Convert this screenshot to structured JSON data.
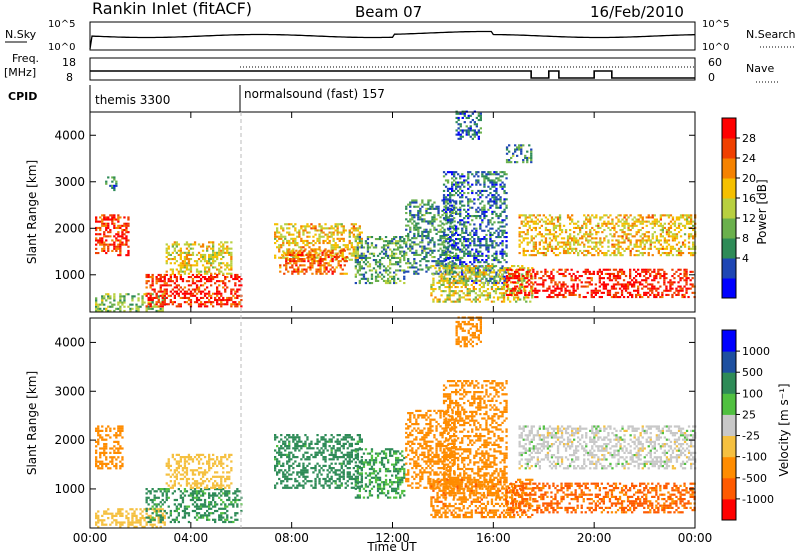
{
  "header": {
    "station": "Rankin Inlet (fitACF)",
    "beam": "Beam 07",
    "date": "16/Feb/2010"
  },
  "panels": {
    "nsky": {
      "label": "N.Sky",
      "yticks": [
        "10^5",
        "10^0"
      ],
      "right_label": "N.Search",
      "right_yticks": [
        "10^5",
        "10^0"
      ]
    },
    "freq": {
      "label_line1": "Freq.",
      "label_line2": "[MHz]",
      "yticks": [
        "18",
        "8"
      ],
      "right_label": "Nave",
      "right_yticks": [
        "60",
        "0"
      ]
    },
    "cpid": {
      "label": "CPID",
      "segments": [
        "themis 3300",
        "normalsound (fast) 157"
      ]
    }
  },
  "colors": {
    "power": [
      "#0000ff",
      "#1e46b4",
      "#2e8b57",
      "#6ab04c",
      "#b8d040",
      "#f5c000",
      "#f58200",
      "#f04000",
      "#ff0000"
    ],
    "velocity": [
      "#ff0000",
      "#ff5a00",
      "#ff8c00",
      "#f5c040",
      "#c8c8c8",
      "#50c040",
      "#2e8b57",
      "#1e50a0",
      "#0000ff"
    ]
  },
  "chart_data": [
    {
      "type": "heatmap",
      "name": "power",
      "ylabel": "Slant Range [km]",
      "xlabel": "",
      "x_ticks": [
        "00:00",
        "04:00",
        "08:00",
        "12:00",
        "16:00",
        "20:00",
        "00:00"
      ],
      "y_ticks": [
        1000,
        2000,
        3000,
        4000
      ],
      "ylim": [
        200,
        4500
      ],
      "xlim_hours": [
        0,
        24
      ],
      "colorbar_label": "Power [dB]",
      "colorbar_ticks": [
        "28",
        "24",
        "20",
        "16",
        "12",
        "8",
        "4"
      ],
      "regions": [
        {
          "t0": 0.2,
          "t1": 1.5,
          "r0": 1400,
          "r1": 2300,
          "v": 25
        },
        {
          "t0": 0.6,
          "t1": 1.0,
          "r0": 2800,
          "r1": 3100,
          "v": 8
        },
        {
          "t0": 0.2,
          "t1": 3.0,
          "r0": 200,
          "r1": 600,
          "v": 12
        },
        {
          "t0": 2.2,
          "t1": 6.0,
          "r0": 300,
          "r1": 1000,
          "v": 26
        },
        {
          "t0": 3.0,
          "t1": 5.6,
          "r0": 1000,
          "r1": 1700,
          "v": 17
        },
        {
          "t0": 7.3,
          "t1": 10.8,
          "r0": 1300,
          "r1": 2100,
          "v": 18
        },
        {
          "t0": 7.5,
          "t1": 10.2,
          "r0": 1000,
          "r1": 1500,
          "v": 23
        },
        {
          "t0": 10.5,
          "t1": 12.5,
          "r0": 800,
          "r1": 1800,
          "v": 10
        },
        {
          "t0": 12.5,
          "t1": 14.5,
          "r0": 1000,
          "r1": 2600,
          "v": 9
        },
        {
          "t0": 14.0,
          "t1": 16.5,
          "r0": 800,
          "r1": 3200,
          "v": 7
        },
        {
          "t0": 13.5,
          "t1": 17.5,
          "r0": 400,
          "r1": 1200,
          "v": 16
        },
        {
          "t0": 16.5,
          "t1": 24.0,
          "r0": 500,
          "r1": 1100,
          "v": 27
        },
        {
          "t0": 17.0,
          "t1": 24.0,
          "r0": 1400,
          "r1": 2300,
          "v": 18
        },
        {
          "t0": 16.5,
          "t1": 17.5,
          "r0": 3400,
          "r1": 3800,
          "v": 9
        },
        {
          "t0": 14.5,
          "t1": 15.5,
          "r0": 3900,
          "r1": 4500,
          "v": 6
        }
      ]
    },
    {
      "type": "heatmap",
      "name": "velocity",
      "ylabel": "Slant Range [km]",
      "xlabel": "Time UT",
      "x_ticks": [
        "00:00",
        "04:00",
        "08:00",
        "12:00",
        "16:00",
        "20:00",
        "00:00"
      ],
      "y_ticks": [
        1000,
        2000,
        3000,
        4000
      ],
      "ylim": [
        200,
        4500
      ],
      "xlim_hours": [
        0,
        24
      ],
      "colorbar_label": "Velocity [m s⁻¹]",
      "colorbar_ticks": [
        "1000",
        "500",
        "100",
        "25",
        "-25",
        "-100",
        "-500",
        "-1000"
      ],
      "regions": [
        {
          "t0": 0.2,
          "t1": 1.3,
          "r0": 1400,
          "r1": 2300,
          "v": -120
        },
        {
          "t0": 0.2,
          "t1": 3.0,
          "r0": 200,
          "r1": 600,
          "v": -80
        },
        {
          "t0": 2.2,
          "t1": 6.0,
          "r0": 300,
          "r1": 1000,
          "v": 150
        },
        {
          "t0": 3.0,
          "t1": 5.6,
          "r0": 1000,
          "r1": 1700,
          "v": -60
        },
        {
          "t0": 7.3,
          "t1": 10.8,
          "r0": 1000,
          "r1": 2100,
          "v": 200
        },
        {
          "t0": 10.5,
          "t1": 12.5,
          "r0": 800,
          "r1": 1800,
          "v": 120
        },
        {
          "t0": 12.5,
          "t1": 14.5,
          "r0": 1000,
          "r1": 2600,
          "v": -300
        },
        {
          "t0": 14.0,
          "t1": 16.5,
          "r0": 800,
          "r1": 3200,
          "v": -150
        },
        {
          "t0": 13.5,
          "t1": 17.5,
          "r0": 400,
          "r1": 1200,
          "v": -400
        },
        {
          "t0": 16.5,
          "t1": 24.0,
          "r0": 500,
          "r1": 1100,
          "v": -600
        },
        {
          "t0": 17.0,
          "t1": 24.0,
          "r0": 1400,
          "r1": 2300,
          "v": 0
        },
        {
          "t0": 14.5,
          "t1": 15.5,
          "r0": 3900,
          "r1": 4500,
          "v": -200
        }
      ]
    }
  ]
}
